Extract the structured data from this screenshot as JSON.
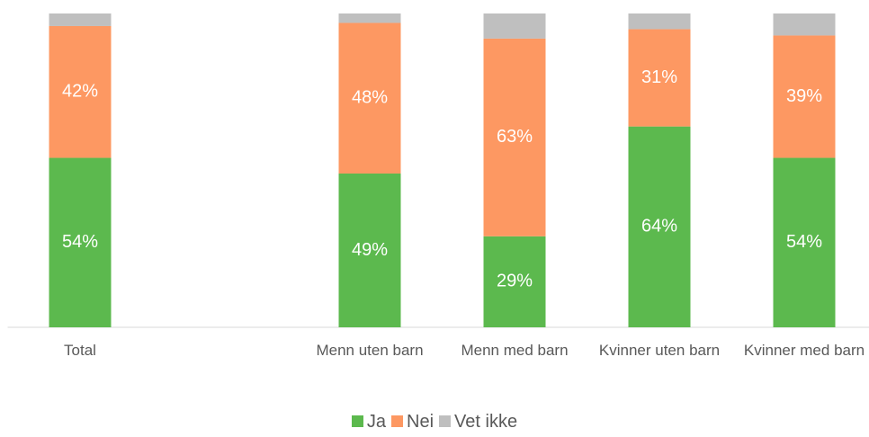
{
  "chart_data": {
    "type": "stacked_bar",
    "categories": [
      "Total",
      null,
      "Menn uten barn",
      "Menn med barn",
      "Kvinner uten barn",
      "Kvinner med barn"
    ],
    "series": [
      {
        "name": "Ja",
        "color": "#5cb94e",
        "values": [
          54,
          null,
          49,
          29,
          64,
          54
        ],
        "value_labels": [
          "54%",
          null,
          "49%",
          "29%",
          "64%",
          "54%"
        ]
      },
      {
        "name": "Nei",
        "color": "#fd9862",
        "values": [
          42,
          null,
          48,
          63,
          31,
          39
        ],
        "value_labels": [
          "42%",
          null,
          "48%",
          "63%",
          "31%",
          "39%"
        ]
      },
      {
        "name": "Vet ikke",
        "color": "#bfbfbf",
        "values": [
          4,
          null,
          3,
          8,
          5,
          7
        ]
      }
    ],
    "legend": "bottom"
  }
}
